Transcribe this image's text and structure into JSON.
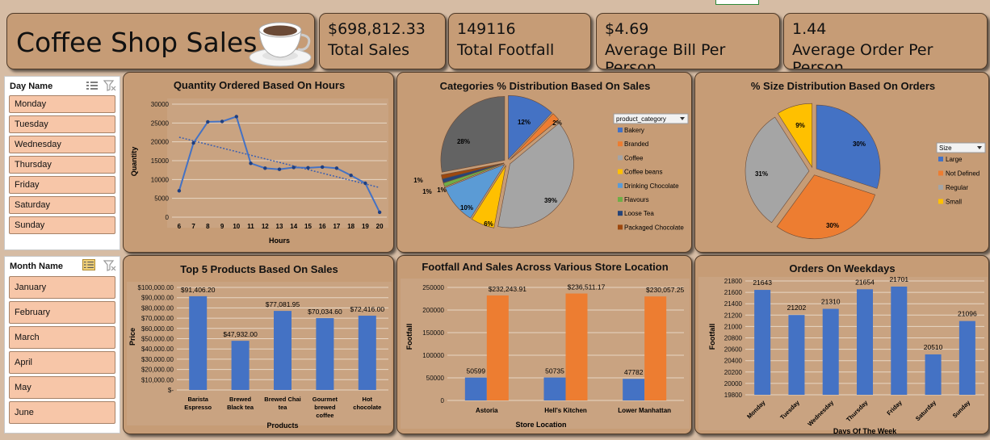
{
  "header": {
    "title": "Coffee Shop Sales"
  },
  "kpis": [
    {
      "value": "$698,812.33",
      "label": "Total Sales"
    },
    {
      "value": "149116",
      "label": "Total Footfall"
    },
    {
      "value": "$4.69",
      "label": "Average Bill Per Person"
    },
    {
      "value": "1.44",
      "label": "Average Order Per Person"
    }
  ],
  "day_slicer": {
    "title": "Day Name",
    "items": [
      "Monday",
      "Tuesday",
      "Wednesday",
      "Thursday",
      "Friday",
      "Saturday",
      "Sunday"
    ]
  },
  "month_slicer": {
    "title": "Month Name",
    "items": [
      "January",
      "February",
      "March",
      "April",
      "May",
      "June"
    ]
  },
  "colors": {
    "blue": "#4472c4",
    "orange": "#ed7d31",
    "gray": "#a5a5a5",
    "yellow": "#ffc000",
    "lightblue": "#5b9bd5",
    "green": "#70ad47",
    "navy": "#264478",
    "brown": "#9e480e",
    "darkgray": "#636363"
  },
  "chart_data": [
    {
      "id": "hours",
      "type": "line",
      "title": "Quantity Ordered Based On Hours",
      "xlabel": "Hours",
      "ylabel": "Quantity",
      "x": [
        6,
        7,
        8,
        9,
        10,
        11,
        12,
        13,
        14,
        15,
        16,
        17,
        18,
        19,
        20
      ],
      "values": [
        7000,
        19700,
        25300,
        25400,
        26700,
        14300,
        13000,
        12700,
        13200,
        13100,
        13300,
        13000,
        11100,
        9000,
        1300
      ],
      "yticks": [
        "0",
        "5000",
        "10000",
        "15000",
        "20000",
        "25000",
        "30000"
      ],
      "ylim": [
        0,
        30000
      ],
      "trendline": true
    },
    {
      "id": "categories",
      "type": "pie",
      "title": "Categories % Distribution Based On Sales",
      "legend_title": "product_category",
      "slices": [
        {
          "name": "Bakery",
          "value": 12,
          "label": "12%"
        },
        {
          "name": "Branded",
          "value": 2,
          "label": "2%"
        },
        {
          "name": "Coffee",
          "value": 39,
          "label": "39%"
        },
        {
          "name": "Coffee beans",
          "value": 6,
          "label": "6%"
        },
        {
          "name": "Drinking Chocolate",
          "value": 10,
          "label": "10%"
        },
        {
          "name": "Flavours",
          "value": 1,
          "label": "1%"
        },
        {
          "name": "Loose Tea",
          "value": 1,
          "label": "1%"
        },
        {
          "name": "Packaged Chocolate",
          "value": 1,
          "label": "1%"
        },
        {
          "name": "Tea",
          "value": 28,
          "label": "28%"
        }
      ],
      "legend_entries": [
        "Bakery",
        "Branded",
        "Coffee",
        "Coffee beans",
        "Drinking Chocolate",
        "Flavours",
        "Loose Tea",
        "Packaged Chocolate"
      ]
    },
    {
      "id": "sizes",
      "type": "pie",
      "title": "% Size Distribution Based On Orders",
      "legend_title": "Size",
      "slices": [
        {
          "name": "Large",
          "value": 30,
          "label": "30%"
        },
        {
          "name": "Not Defined",
          "value": 30,
          "label": "30%"
        },
        {
          "name": "Regular",
          "value": 31,
          "label": "31%"
        },
        {
          "name": "Small",
          "value": 9,
          "label": "9%"
        }
      ]
    },
    {
      "id": "products",
      "type": "bar",
      "title": "Top 5 Products Based On Sales",
      "xlabel": "Products",
      "ylabel": "Price",
      "categories": [
        [
          "Barista",
          "Espresso"
        ],
        [
          "Brewed",
          "Black tea"
        ],
        [
          "Brewed Chai",
          "tea"
        ],
        [
          "Gourmet",
          "brewed",
          "coffee"
        ],
        [
          "Hot",
          "chocolate"
        ]
      ],
      "values": [
        91406.2,
        47932.0,
        77081.95,
        70034.6,
        72416.0
      ],
      "data_labels": [
        "$91,406.20",
        "$47,932.00",
        "$77,081.95",
        "$70,034.60",
        "$72,416.00"
      ],
      "yticks": [
        "$-",
        "$10,000.00",
        "$20,000.00",
        "$30,000.00",
        "$40,000.00",
        "$50,000.00",
        "$60,000.00",
        "$70,000.00",
        "$80,000.00",
        "$90,000.00",
        "$100,000.00"
      ],
      "ylim": [
        0,
        100000
      ]
    },
    {
      "id": "stores",
      "type": "bar",
      "title": "Footfall And Sales Across Various Store Location",
      "xlabel": "Store Location",
      "ylabel": "Footfall",
      "categories": [
        "Astoria",
        "Hell's Kitchen",
        "Lower Manhattan"
      ],
      "series": [
        {
          "values": [
            50599,
            50735,
            47782
          ],
          "labels": [
            "50599",
            "50735",
            "47782"
          ]
        },
        {
          "values": [
            232243.91,
            236511.17,
            230057.25
          ],
          "labels": [
            "$232,243.91",
            "$236,511.17",
            "$230,057.25"
          ]
        }
      ],
      "yticks": [
        "0",
        "50000",
        "100000",
        "150000",
        "200000",
        "250000"
      ],
      "ylim": [
        0,
        250000
      ]
    },
    {
      "id": "weekdays",
      "type": "bar",
      "title": "Orders On Weekdays",
      "xlabel": "Days Of The Week",
      "ylabel": "Footfall",
      "categories": [
        "Monday",
        "Tuesday",
        "Wednesday",
        "Thursday",
        "Friday",
        "Saturday",
        "Sunday"
      ],
      "values": [
        21643,
        21202,
        21310,
        21654,
        21701,
        20510,
        21096
      ],
      "data_labels": [
        "21643",
        "21202",
        "21310",
        "21654",
        "21701",
        "20510",
        "21096"
      ],
      "yticks": [
        "19800",
        "20000",
        "20200",
        "20400",
        "20600",
        "20800",
        "21000",
        "21200",
        "21400",
        "21600",
        "21800"
      ],
      "ylim": [
        19800,
        21800
      ]
    }
  ]
}
